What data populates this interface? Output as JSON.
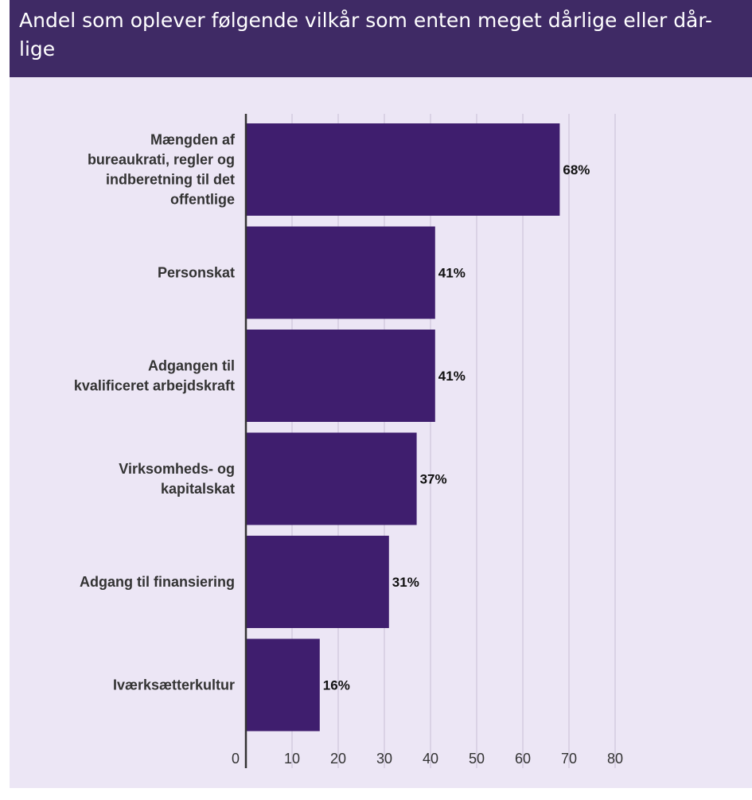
{
  "title": "Andel som oplever følgende vilkår som enten meget dårlige eller dår-lige",
  "title_lines": [
    "Andel som oplever følgende vilkår som enten meget dårlige eller dår-",
    "lige"
  ],
  "colors": {
    "bar": "#3f1e6e",
    "header": "#3f2a65",
    "background": "#ece6f5",
    "grid": "#d3cbe0"
  },
  "chart_data": {
    "type": "bar",
    "orientation": "horizontal",
    "categories": [
      [
        "Mængden af",
        "bureaukrati, regler og",
        "indberetning til det",
        "offentlige"
      ],
      [
        "Personskat"
      ],
      [
        "Adgangen til",
        "kvalificeret arbejdskraft"
      ],
      [
        "Virksomheds- og",
        "kapitalskat"
      ],
      [
        "Adgang til finansiering"
      ],
      [
        "Iværksætterkultur"
      ]
    ],
    "values": [
      68,
      41,
      41,
      37,
      31,
      16
    ],
    "value_labels": [
      "68%",
      "41%",
      "41%",
      "37%",
      "31%",
      "16%"
    ],
    "xticks": [
      "0",
      "10",
      "20",
      "30",
      "40",
      "50",
      "60",
      "70",
      "80"
    ],
    "xlim": [
      0,
      80
    ],
    "grid": true,
    "legend": "none"
  }
}
